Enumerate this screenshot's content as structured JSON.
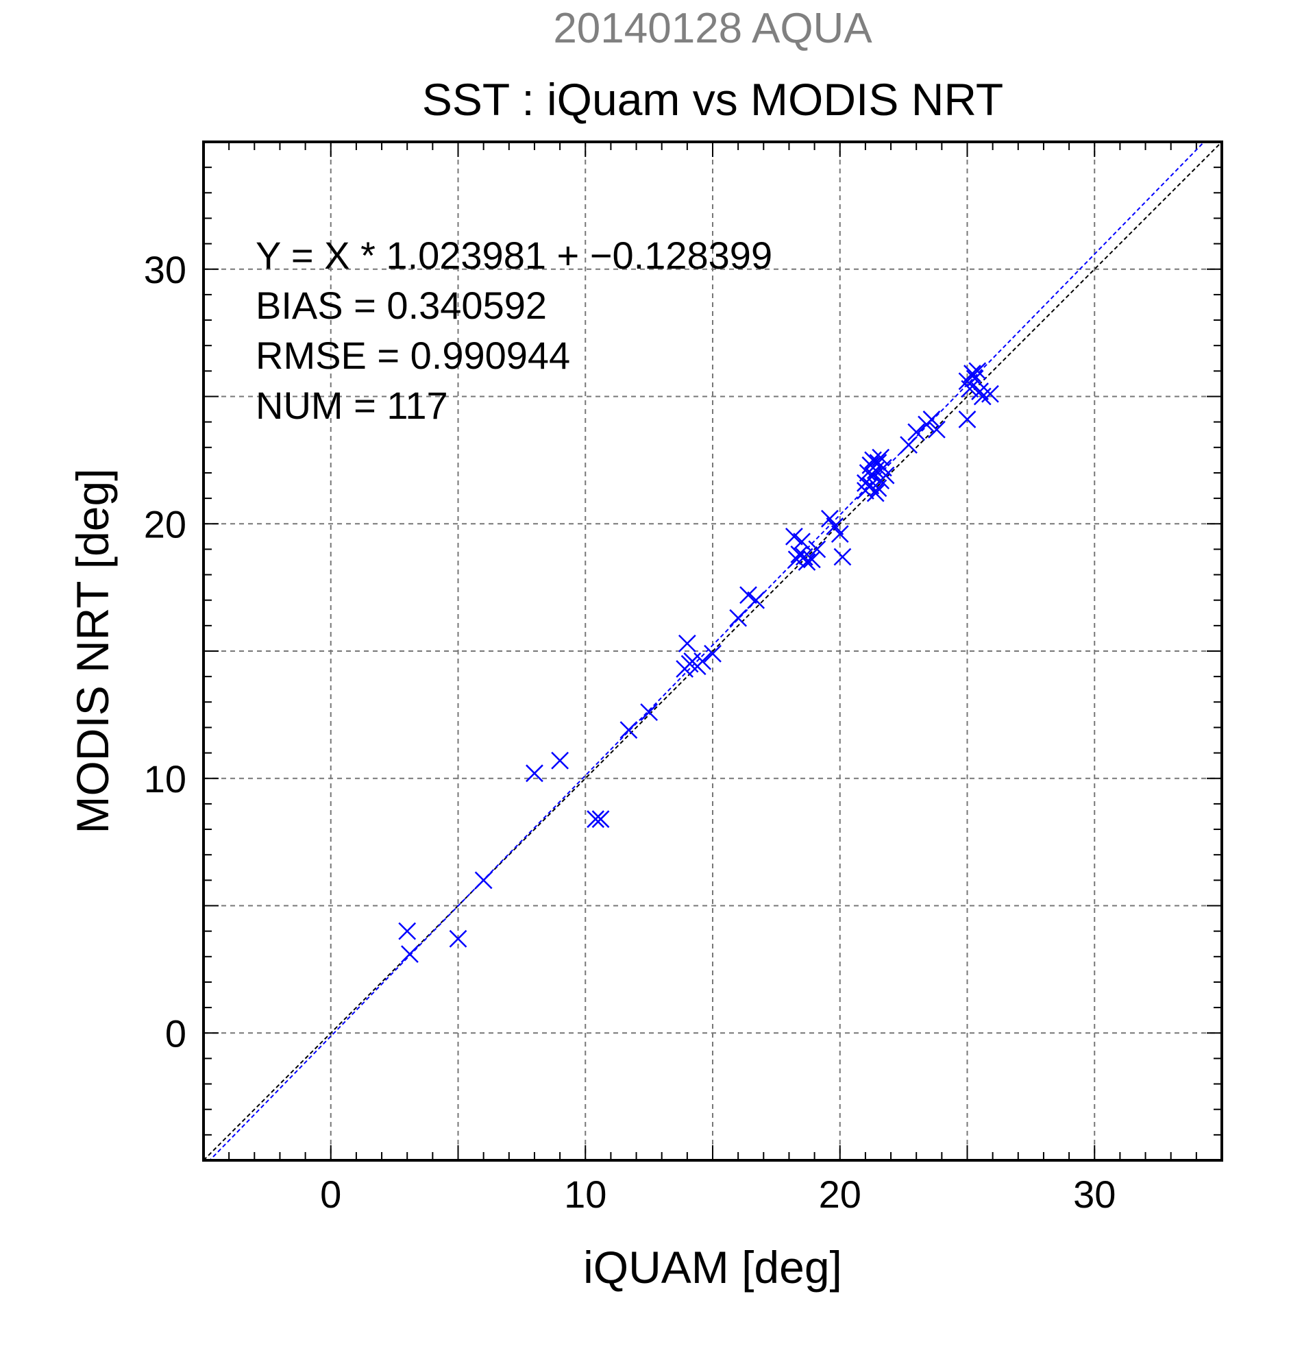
{
  "chart_data": {
    "type": "scatter",
    "supertitle": "20140128 AQUA",
    "title": "SST : iQuam vs MODIS NRT",
    "xlabel": "iQUAM [deg]",
    "ylabel": "MODIS NRT [deg]",
    "xlim": [
      -5,
      35
    ],
    "ylim": [
      -5,
      35
    ],
    "xticks": [
      0,
      10,
      20,
      30
    ],
    "yticks": [
      0,
      10,
      20,
      30
    ],
    "grid": true,
    "grid_step": 5,
    "annotations": [
      "Y = X * 1.023981 + −0.128399",
      "BIAS = 0.340592",
      "RMSE = 0.990944",
      "NUM = 117"
    ],
    "fit": {
      "slope": 1.023981,
      "intercept": -0.128399
    },
    "colors": {
      "points": "#0000ff",
      "fit_line": "#0000ff",
      "identity_line": "#000000",
      "grid": "#777777",
      "supertitle": "#808080"
    },
    "series": [
      {
        "x": [
          3.0,
          3.1,
          5.0,
          6.0,
          8.0,
          9.0,
          10.4,
          10.6,
          11.7,
          12.5,
          13.9,
          14.0,
          14.1,
          14.2,
          14.4,
          14.6,
          15.0,
          16.0,
          16.4,
          16.7,
          18.2,
          18.3,
          18.4,
          18.5,
          18.6,
          18.7,
          18.9,
          19.1,
          19.6,
          19.8,
          20.0,
          20.1,
          21.0,
          21.1,
          21.2,
          21.3,
          21.4,
          21.5,
          21.6,
          21.7,
          21.8,
          21.0,
          21.2,
          21.4,
          21.6,
          21.3,
          21.5,
          22.7,
          23.0,
          23.4,
          23.6,
          23.8,
          25.0,
          25.1,
          25.2,
          25.3,
          25.4,
          25.5,
          25.6,
          25.9,
          25.0
        ],
        "y": [
          4.0,
          3.1,
          3.7,
          6.0,
          10.2,
          10.7,
          8.4,
          8.4,
          11.9,
          12.6,
          14.3,
          15.3,
          14.5,
          14.6,
          14.4,
          14.6,
          14.9,
          16.3,
          17.2,
          17.0,
          19.5,
          18.6,
          18.8,
          19.3,
          18.7,
          18.5,
          18.6,
          19.0,
          20.2,
          19.9,
          19.6,
          18.7,
          21.6,
          22.0,
          22.3,
          21.9,
          22.1,
          22.4,
          21.7,
          22.2,
          21.9,
          21.3,
          21.5,
          21.2,
          22.6,
          22.5,
          21.4,
          23.1,
          23.6,
          23.9,
          24.1,
          23.7,
          25.6,
          25.3,
          25.9,
          25.7,
          26.0,
          25.2,
          25.0,
          25.1,
          24.1
        ]
      }
    ]
  }
}
